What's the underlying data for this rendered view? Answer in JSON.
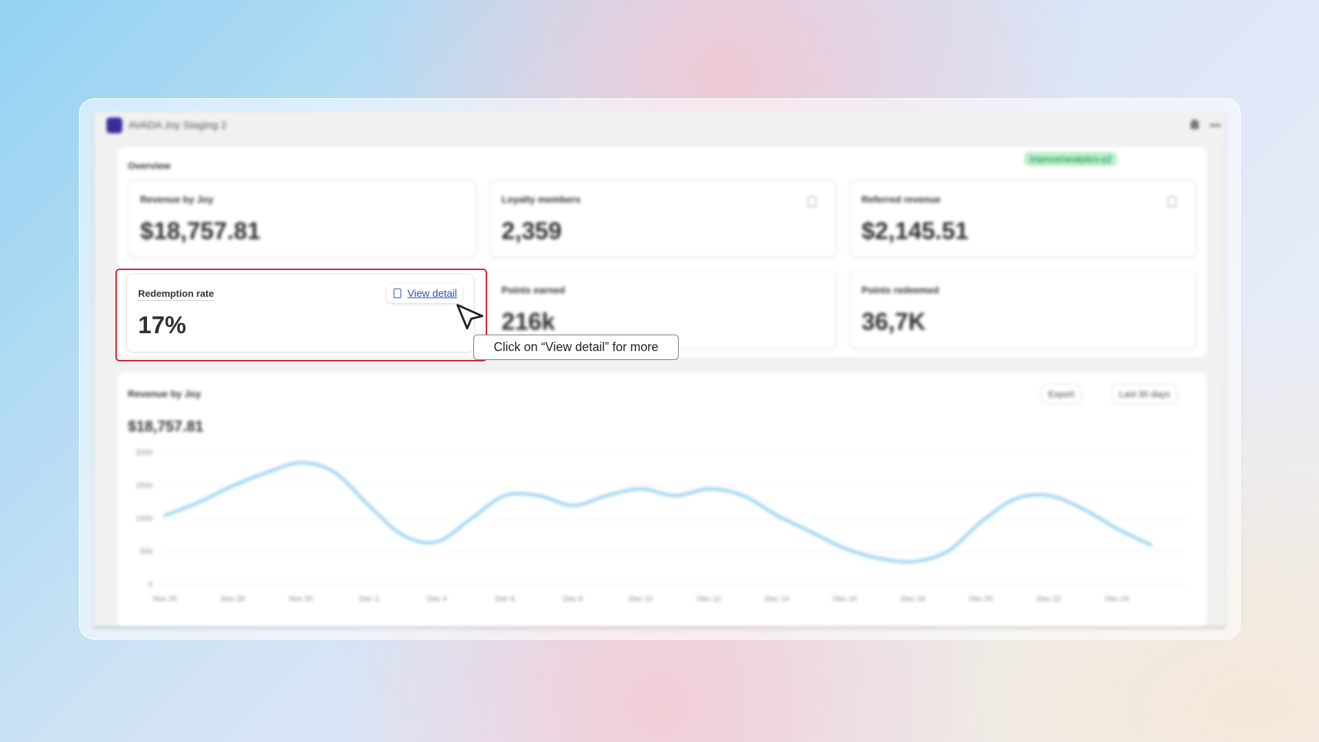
{
  "window": {
    "title": "AVADA Joy Staging 2"
  },
  "overview": {
    "title": "Overview",
    "badge": "improve/analytics-p2",
    "cards": [
      {
        "label": "Revenue by Joy",
        "value": "$18,757.81"
      },
      {
        "label": "Loyalty members",
        "value": "2,359"
      },
      {
        "label": "Referred revenue",
        "value": "$2,145.51"
      },
      {
        "label": "Redemption rate",
        "value": "17%",
        "link": "View detail"
      },
      {
        "label": "Points earned",
        "value": "216k"
      },
      {
        "label": "Points redeemed",
        "value": "36,7K"
      }
    ]
  },
  "tooltip": "Click on “View detail” for more",
  "chart_panel": {
    "actions": [
      "Export",
      "Last 30 days"
    ]
  },
  "chart_data": {
    "type": "line",
    "title": "Revenue by Joy",
    "subtitle": "$18,757.81",
    "categories": [
      "Nov 26",
      null,
      "Nov 28",
      null,
      "Nov 30",
      null,
      "Dec 2",
      null,
      "Dec 4",
      null,
      "Dec 6",
      null,
      "Dec 8",
      null,
      "Dec 10",
      null,
      "Dec 12",
      null,
      "Dec 14",
      null,
      "Dec 16",
      null,
      "Dec 18",
      null,
      "Dec 20",
      null,
      "Dec 22",
      null,
      "Dec 24",
      null
    ],
    "values": [
      1050,
      1250,
      1500,
      1700,
      1850,
      1700,
      1200,
      750,
      650,
      1000,
      1350,
      1350,
      1200,
      1350,
      1450,
      1350,
      1450,
      1350,
      1050,
      800,
      550,
      400,
      350,
      500,
      950,
      1300,
      1350,
      1150,
      850,
      600
    ],
    "color": "#8fcdec",
    "ylim": [
      0,
      2000
    ],
    "yticks": [
      0,
      500,
      1000,
      1500,
      2000
    ],
    "grid": true
  }
}
